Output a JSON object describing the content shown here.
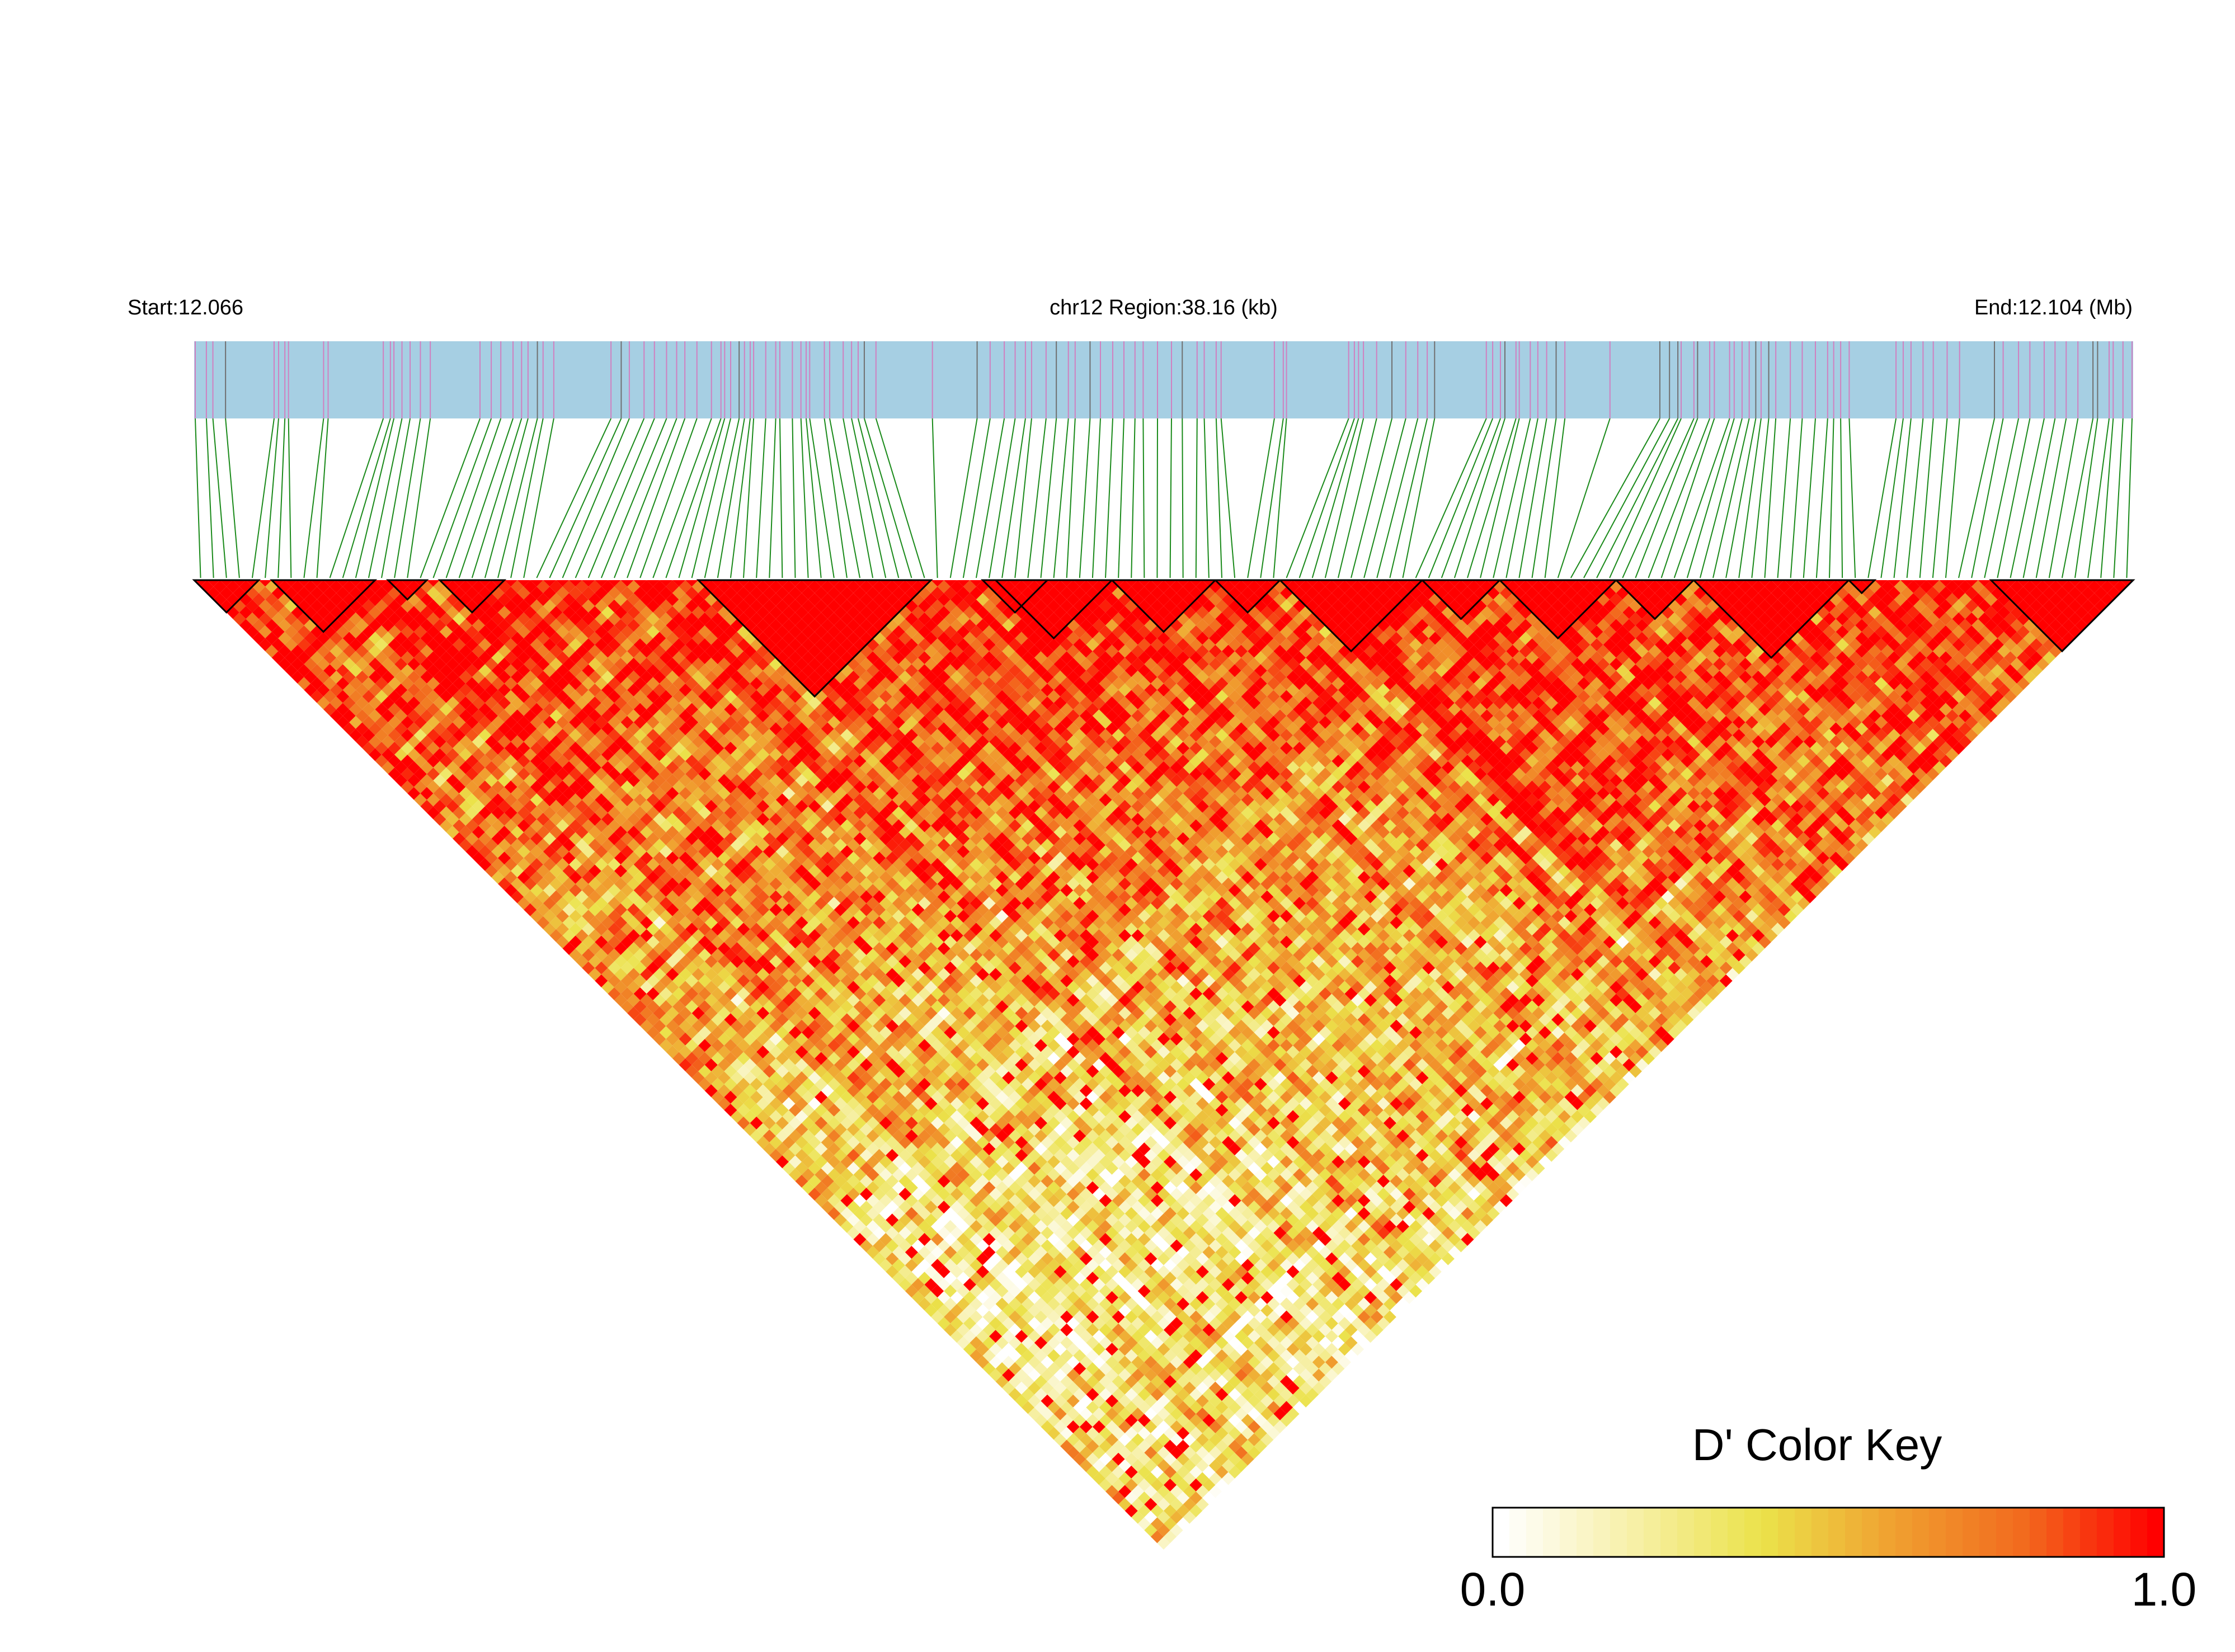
{
  "chart_data": {
    "type": "heatmap",
    "layout": "ld-triangle",
    "chromosome": "chr12",
    "start_label": "Start:12.066",
    "region_label": "chr12 Region:38.16 (kb)",
    "end_label": "End:12.104 (Mb)",
    "region_start_mb": 12.066,
    "region_end_mb": 12.104,
    "region_length_kb": 38.16,
    "snp_count": 150,
    "color_key": {
      "title": "D' Color Key",
      "min_label": "0.0",
      "max_label": "1.0",
      "min": 0.0,
      "max": 1.0,
      "colors": [
        "#ffffff",
        "#f7f0a8",
        "#ebe24a",
        "#f0a030",
        "#f26a1e",
        "#ff0000"
      ]
    },
    "haplotype_blocks": [
      {
        "first_snp": 1,
        "last_snp": 5
      },
      {
        "first_snp": 7,
        "last_snp": 14
      },
      {
        "first_snp": 16,
        "last_snp": 18
      },
      {
        "first_snp": 20,
        "last_snp": 24
      },
      {
        "first_snp": 40,
        "last_snp": 57
      },
      {
        "first_snp": 62,
        "last_snp": 66
      },
      {
        "first_snp": 63,
        "last_snp": 71
      },
      {
        "first_snp": 72,
        "last_snp": 79
      },
      {
        "first_snp": 80,
        "last_snp": 84
      },
      {
        "first_snp": 85,
        "last_snp": 95
      },
      {
        "first_snp": 96,
        "last_snp": 101
      },
      {
        "first_snp": 102,
        "last_snp": 110
      },
      {
        "first_snp": 111,
        "last_snp": 116
      },
      {
        "first_snp": 117,
        "last_snp": 128
      },
      {
        "first_snp": 129,
        "last_snp": 130
      },
      {
        "first_snp": 140,
        "last_snp": 150
      }
    ],
    "high_ld_regions": [
      {
        "from_snp": 40,
        "to_snp": 57
      },
      {
        "from_snp": 70,
        "to_snp": 84
      },
      {
        "from_snp": 85,
        "to_snp": 130
      },
      {
        "from_snp": 140,
        "to_snp": 150
      }
    ],
    "colors": {
      "gene_track": "#a6cfe3",
      "snp_tick": "#d080c0",
      "snp_tick_alt": "#707070",
      "connector": "#1a8a1a",
      "block_outline": "#000000"
    }
  }
}
